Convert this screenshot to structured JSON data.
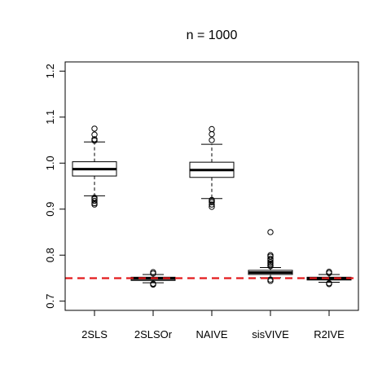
{
  "chart_data": {
    "type": "boxplot",
    "title": "n = 1000",
    "xlabel": "",
    "ylabel": "",
    "ylim": [
      0.68,
      1.22
    ],
    "yticks": [
      0.7,
      0.8,
      0.9,
      1.0,
      1.1,
      1.2
    ],
    "ytick_labels": [
      "0.7",
      "0.8",
      "0.9",
      "1.0",
      "1.1",
      "1.2"
    ],
    "reference_line": {
      "y": 0.75,
      "color": "#e31a1c",
      "style": "dashed"
    },
    "categories": [
      "2SLS",
      "2SLSOr",
      "NAIVE",
      "sisVIVE",
      "R2IVE"
    ],
    "boxes": [
      {
        "label": "2SLS",
        "whisker_low": 0.929,
        "q1": 0.972,
        "median": 0.987,
        "q3": 1.003,
        "whisker_high": 1.046,
        "outliers": [
          0.91,
          0.913,
          0.918,
          0.922,
          0.925,
          1.049,
          1.052,
          1.062,
          1.075
        ]
      },
      {
        "label": "2SLSOr",
        "whisker_low": 0.74,
        "q1": 0.745,
        "median": 0.749,
        "q3": 0.752,
        "whisker_high": 0.758,
        "outliers": [
          0.736,
          0.738,
          0.76,
          0.763
        ]
      },
      {
        "label": "NAIVE",
        "whisker_low": 0.923,
        "q1": 0.969,
        "median": 0.985,
        "q3": 1.002,
        "whisker_high": 1.041,
        "outliers": [
          0.905,
          0.91,
          0.915,
          0.918,
          0.92,
          1.05,
          1.063,
          1.074
        ]
      },
      {
        "label": "sisVIVE",
        "whisker_low": 0.751,
        "q1": 0.758,
        "median": 0.762,
        "q3": 0.767,
        "whisker_high": 0.773,
        "outliers": [
          0.744,
          0.747,
          0.776,
          0.779,
          0.782,
          0.785,
          0.789,
          0.792,
          0.797,
          0.8,
          0.85
        ]
      },
      {
        "label": "R2IVE",
        "whisker_low": 0.741,
        "q1": 0.746,
        "median": 0.749,
        "q3": 0.752,
        "whisker_high": 0.758,
        "outliers": [
          0.737,
          0.739,
          0.761,
          0.764
        ]
      }
    ]
  }
}
